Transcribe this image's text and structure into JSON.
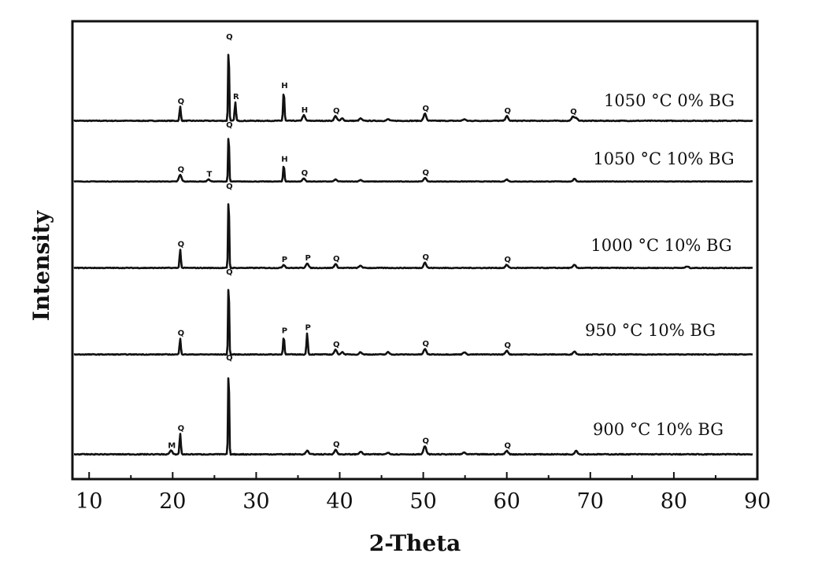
{
  "chart_data": {
    "type": "line",
    "title": "",
    "xlabel": "2-Theta",
    "ylabel": "Intensity",
    "xlim": [
      8,
      90
    ],
    "x_ticks": [
      10,
      20,
      30,
      40,
      50,
      60,
      70,
      80,
      90
    ],
    "minor_x_ticks": [
      15,
      25,
      35,
      45,
      55,
      65,
      75,
      85
    ],
    "grid": false,
    "series": [
      {
        "name": "1050 °C 0% BG",
        "peaks": [
          {
            "x": 20.9,
            "h": 18,
            "label": "Q"
          },
          {
            "x": 26.7,
            "h": 100,
            "label": "Q"
          },
          {
            "x": 27.5,
            "h": 24,
            "label": "R"
          },
          {
            "x": 33.3,
            "h": 38,
            "label": "H"
          },
          {
            "x": 35.7,
            "h": 7,
            "label": "H"
          },
          {
            "x": 39.5,
            "h": 6,
            "label": "Q"
          },
          {
            "x": 40.3,
            "h": 3
          },
          {
            "x": 42.5,
            "h": 3
          },
          {
            "x": 45.8,
            "h": 2
          },
          {
            "x": 50.2,
            "h": 9,
            "label": "Q"
          },
          {
            "x": 54.9,
            "h": 2
          },
          {
            "x": 60.0,
            "h": 6,
            "label": "Q"
          },
          {
            "x": 67.9,
            "h": 5,
            "label": "Q"
          },
          {
            "x": 68.3,
            "h": 4
          }
        ]
      },
      {
        "name": "1050 °C 10% BG",
        "peaks": [
          {
            "x": 20.9,
            "h": 13,
            "label": "Q"
          },
          {
            "x": 24.3,
            "h": 4,
            "label": "T"
          },
          {
            "x": 26.7,
            "h": 100,
            "label": "Q"
          },
          {
            "x": 33.3,
            "h": 33,
            "label": "H"
          },
          {
            "x": 35.7,
            "h": 6,
            "label": "Q"
          },
          {
            "x": 39.5,
            "h": 4
          },
          {
            "x": 42.5,
            "h": 3
          },
          {
            "x": 50.2,
            "h": 7,
            "label": "Q"
          },
          {
            "x": 60.0,
            "h": 4
          },
          {
            "x": 68.1,
            "h": 5
          }
        ]
      },
      {
        "name": "1000 °C 10% BG",
        "peaks": [
          {
            "x": 20.9,
            "h": 24,
            "label": "Q"
          },
          {
            "x": 26.7,
            "h": 100,
            "label": "Q"
          },
          {
            "x": 33.3,
            "h": 4,
            "label": "P"
          },
          {
            "x": 36.1,
            "h": 6,
            "label": "P"
          },
          {
            "x": 39.5,
            "h": 5,
            "label": "Q"
          },
          {
            "x": 42.5,
            "h": 3
          },
          {
            "x": 50.2,
            "h": 7,
            "label": "Q"
          },
          {
            "x": 60.0,
            "h": 4,
            "label": "Q"
          },
          {
            "x": 68.1,
            "h": 4
          },
          {
            "x": 81.6,
            "h": 2
          }
        ]
      },
      {
        "name": "950 °C 10% BG",
        "peaks": [
          {
            "x": 20.9,
            "h": 21,
            "label": "Q"
          },
          {
            "x": 26.7,
            "h": 100,
            "label": "Q"
          },
          {
            "x": 33.3,
            "h": 24,
            "label": "P"
          },
          {
            "x": 36.1,
            "h": 28,
            "label": "P"
          },
          {
            "x": 39.5,
            "h": 6,
            "label": "Q"
          },
          {
            "x": 40.3,
            "h": 3
          },
          {
            "x": 42.5,
            "h": 3
          },
          {
            "x": 45.8,
            "h": 3
          },
          {
            "x": 50.2,
            "h": 7,
            "label": "Q"
          },
          {
            "x": 54.9,
            "h": 3
          },
          {
            "x": 60.0,
            "h": 5,
            "label": "Q"
          },
          {
            "x": 68.1,
            "h": 4
          }
        ]
      },
      {
        "name": "900 °C 10% BG",
        "peaks": [
          {
            "x": 19.8,
            "h": 4,
            "label": "M"
          },
          {
            "x": 20.9,
            "h": 23,
            "label": "Q"
          },
          {
            "x": 26.7,
            "h": 100,
            "label": "Q"
          },
          {
            "x": 36.1,
            "h": 4
          },
          {
            "x": 39.5,
            "h": 5,
            "label": "Q"
          },
          {
            "x": 42.5,
            "h": 3
          },
          {
            "x": 45.8,
            "h": 2
          },
          {
            "x": 50.2,
            "h": 9,
            "label": "Q"
          },
          {
            "x": 54.9,
            "h": 2
          },
          {
            "x": 60.0,
            "h": 4,
            "label": "Q"
          },
          {
            "x": 68.3,
            "h": 4
          }
        ]
      }
    ]
  }
}
